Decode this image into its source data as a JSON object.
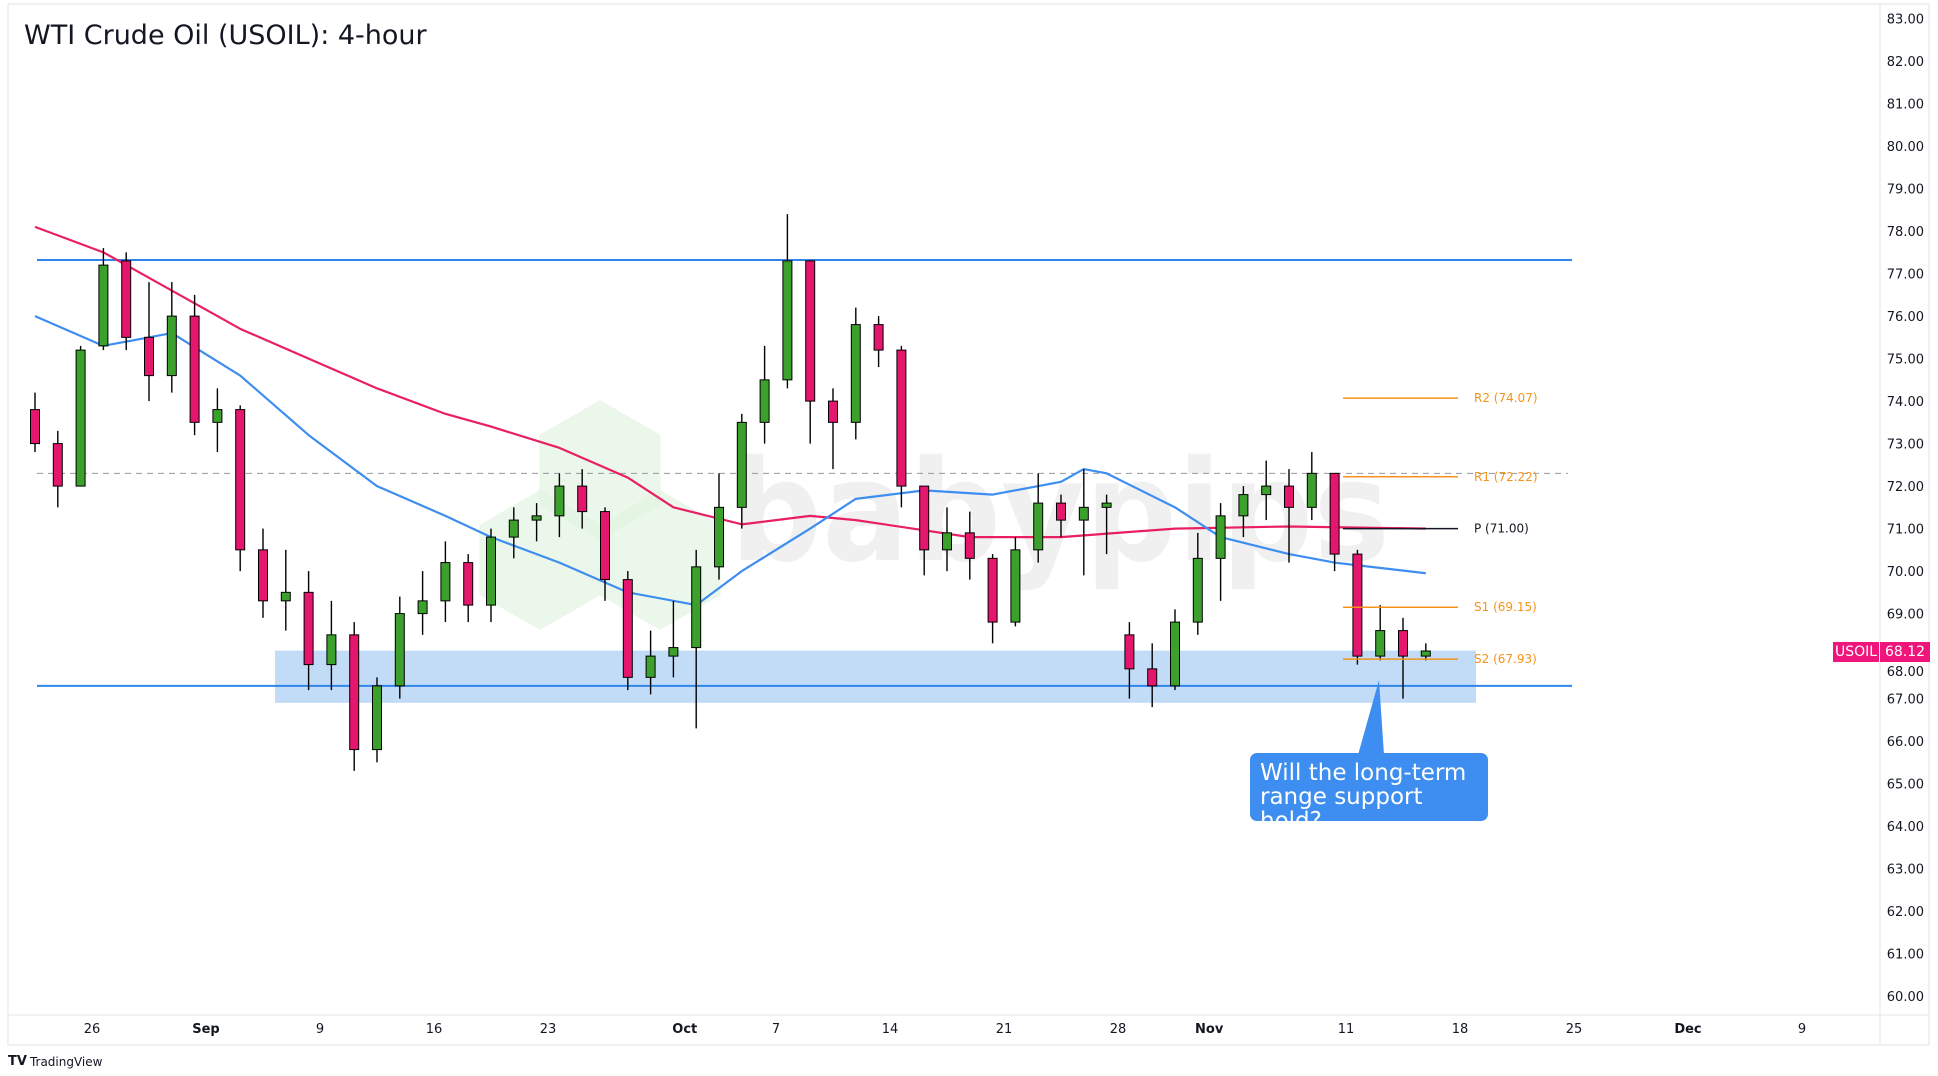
{
  "title": "WTI Crude Oil (USOIL): 4-hour",
  "watermark": "babypips",
  "branding": "TradingView",
  "price_tag": {
    "symbol": "USOIL",
    "value": "68.12",
    "color": "#f0157a"
  },
  "callout": {
    "line1": "Will the long-term",
    "line2": "range support hold?",
    "color": "#3d8ef0"
  },
  "chart_data": {
    "type": "candlestick",
    "ylim": [
      60,
      83
    ],
    "grid": false,
    "y_ticks": [
      "83.00",
      "82.00",
      "81.00",
      "80.00",
      "79.00",
      "78.00",
      "77.00",
      "76.00",
      "75.00",
      "74.00",
      "73.00",
      "72.00",
      "71.00",
      "70.00",
      "69.00",
      "68.00",
      "67.00",
      "66.00",
      "65.00",
      "64.00",
      "63.00",
      "62.00",
      "61.00",
      "60.00"
    ],
    "x_ticks": [
      {
        "label": "26",
        "date": "2024-08-26"
      },
      {
        "label": "Sep",
        "date": "2024-09-02"
      },
      {
        "label": "9",
        "date": "2024-09-09"
      },
      {
        "label": "16",
        "date": "2024-09-16"
      },
      {
        "label": "23",
        "date": "2024-09-23"
      },
      {
        "label": "Oct",
        "date": "2024-10-01"
      },
      {
        "label": "7",
        "date": "2024-10-07"
      },
      {
        "label": "14",
        "date": "2024-10-14"
      },
      {
        "label": "21",
        "date": "2024-10-21"
      },
      {
        "label": "28",
        "date": "2024-10-28"
      },
      {
        "label": "Nov",
        "date": "2024-11-01"
      },
      {
        "label": "11",
        "date": "2024-11-11"
      },
      {
        "label": "18",
        "date": "2024-11-18"
      },
      {
        "label": "25",
        "date": "2024-11-25"
      },
      {
        "label": "Dec",
        "date": "2024-12-02"
      },
      {
        "label": "9",
        "date": "2024-12-09"
      }
    ],
    "up_color": "#3ca02c",
    "down_color": "#e5166d",
    "candles": [
      {
        "d": "2024-08-21",
        "o": 73.8,
        "h": 74.2,
        "l": 72.8,
        "c": 73.0
      },
      {
        "d": "2024-08-22",
        "o": 73.0,
        "h": 73.3,
        "l": 71.5,
        "c": 72.0
      },
      {
        "d": "2024-08-23",
        "o": 72.0,
        "h": 75.3,
        "l": 72.0,
        "c": 75.2
      },
      {
        "d": "2024-08-26",
        "o": 75.3,
        "h": 77.6,
        "l": 75.2,
        "c": 77.2
      },
      {
        "d": "2024-08-27",
        "o": 77.3,
        "h": 77.5,
        "l": 75.2,
        "c": 75.5
      },
      {
        "d": "2024-08-28",
        "o": 75.5,
        "h": 76.8,
        "l": 74.0,
        "c": 74.6
      },
      {
        "d": "2024-08-29",
        "o": 74.6,
        "h": 76.8,
        "l": 74.2,
        "c": 76.0
      },
      {
        "d": "2024-08-30",
        "o": 76.0,
        "h": 76.5,
        "l": 73.2,
        "c": 73.5
      },
      {
        "d": "2024-09-02",
        "o": 73.5,
        "h": 74.3,
        "l": 72.8,
        "c": 73.8
      },
      {
        "d": "2024-09-03",
        "o": 73.8,
        "h": 73.9,
        "l": 70.0,
        "c": 70.5
      },
      {
        "d": "2024-09-04",
        "o": 70.5,
        "h": 71.0,
        "l": 68.9,
        "c": 69.3
      },
      {
        "d": "2024-09-05",
        "o": 69.3,
        "h": 70.5,
        "l": 68.6,
        "c": 69.5
      },
      {
        "d": "2024-09-06",
        "o": 69.5,
        "h": 70.0,
        "l": 67.2,
        "c": 67.8
      },
      {
        "d": "2024-09-09",
        "o": 67.8,
        "h": 69.3,
        "l": 67.2,
        "c": 68.5
      },
      {
        "d": "2024-09-10",
        "o": 68.5,
        "h": 68.8,
        "l": 65.3,
        "c": 65.8
      },
      {
        "d": "2024-09-11",
        "o": 65.8,
        "h": 67.5,
        "l": 65.5,
        "c": 67.3
      },
      {
        "d": "2024-09-12",
        "o": 67.3,
        "h": 69.4,
        "l": 67.0,
        "c": 69.0
      },
      {
        "d": "2024-09-13",
        "o": 69.0,
        "h": 70.0,
        "l": 68.5,
        "c": 69.3
      },
      {
        "d": "2024-09-16",
        "o": 69.3,
        "h": 70.7,
        "l": 68.8,
        "c": 70.2
      },
      {
        "d": "2024-09-17",
        "o": 70.2,
        "h": 70.4,
        "l": 68.8,
        "c": 69.2
      },
      {
        "d": "2024-09-18",
        "o": 69.2,
        "h": 71.0,
        "l": 68.8,
        "c": 70.8
      },
      {
        "d": "2024-09-19",
        "o": 70.8,
        "h": 71.5,
        "l": 70.3,
        "c": 71.2
      },
      {
        "d": "2024-09-20",
        "o": 71.2,
        "h": 71.6,
        "l": 70.7,
        "c": 71.3
      },
      {
        "d": "2024-09-23",
        "o": 71.3,
        "h": 72.3,
        "l": 70.8,
        "c": 72.0
      },
      {
        "d": "2024-09-24",
        "o": 72.0,
        "h": 72.4,
        "l": 71.0,
        "c": 71.4
      },
      {
        "d": "2024-09-25",
        "o": 71.4,
        "h": 71.5,
        "l": 69.3,
        "c": 69.8
      },
      {
        "d": "2024-09-26",
        "o": 69.8,
        "h": 70.0,
        "l": 67.2,
        "c": 67.5
      },
      {
        "d": "2024-09-27",
        "o": 67.5,
        "h": 68.6,
        "l": 67.1,
        "c": 68.0
      },
      {
        "d": "2024-09-30",
        "o": 68.0,
        "h": 69.3,
        "l": 67.5,
        "c": 68.2
      },
      {
        "d": "2024-10-01",
        "o": 68.2,
        "h": 70.5,
        "l": 66.3,
        "c": 70.1
      },
      {
        "d": "2024-10-02",
        "o": 70.1,
        "h": 72.3,
        "l": 69.8,
        "c": 71.5
      },
      {
        "d": "2024-10-03",
        "o": 71.5,
        "h": 73.7,
        "l": 71.0,
        "c": 73.5
      },
      {
        "d": "2024-10-04",
        "o": 73.5,
        "h": 75.3,
        "l": 73.0,
        "c": 74.5
      },
      {
        "d": "2024-10-07",
        "o": 74.5,
        "h": 78.4,
        "l": 74.3,
        "c": 77.3
      },
      {
        "d": "2024-10-08",
        "o": 77.3,
        "h": 77.3,
        "l": 73.0,
        "c": 74.0
      },
      {
        "d": "2024-10-09",
        "o": 74.0,
        "h": 74.3,
        "l": 72.4,
        "c": 73.5
      },
      {
        "d": "2024-10-10",
        "o": 73.5,
        "h": 76.2,
        "l": 73.1,
        "c": 75.8
      },
      {
        "d": "2024-10-11",
        "o": 75.8,
        "h": 76.0,
        "l": 74.8,
        "c": 75.2
      },
      {
        "d": "2024-10-14",
        "o": 75.2,
        "h": 75.3,
        "l": 71.5,
        "c": 72.0
      },
      {
        "d": "2024-10-15",
        "o": 72.0,
        "h": 72.0,
        "l": 69.9,
        "c": 70.5
      },
      {
        "d": "2024-10-16",
        "o": 70.5,
        "h": 71.5,
        "l": 70.0,
        "c": 70.9
      },
      {
        "d": "2024-10-17",
        "o": 70.9,
        "h": 71.4,
        "l": 69.8,
        "c": 70.3
      },
      {
        "d": "2024-10-18",
        "o": 70.3,
        "h": 70.4,
        "l": 68.3,
        "c": 68.8
      },
      {
        "d": "2024-10-21",
        "o": 68.8,
        "h": 70.8,
        "l": 68.7,
        "c": 70.5
      },
      {
        "d": "2024-10-22",
        "o": 70.5,
        "h": 72.3,
        "l": 70.2,
        "c": 71.6
      },
      {
        "d": "2024-10-23",
        "o": 71.6,
        "h": 71.8,
        "l": 70.8,
        "c": 71.2
      },
      {
        "d": "2024-10-24",
        "o": 71.2,
        "h": 72.4,
        "l": 69.9,
        "c": 71.5
      },
      {
        "d": "2024-10-25",
        "o": 71.5,
        "h": 71.8,
        "l": 70.4,
        "c": 71.6
      },
      {
        "d": "2024-10-28",
        "o": 68.5,
        "h": 68.8,
        "l": 67.0,
        "c": 67.7
      },
      {
        "d": "2024-10-29",
        "o": 67.7,
        "h": 68.3,
        "l": 66.8,
        "c": 67.3
      },
      {
        "d": "2024-10-30",
        "o": 67.3,
        "h": 69.1,
        "l": 67.2,
        "c": 68.8
      },
      {
        "d": "2024-10-31",
        "o": 68.8,
        "h": 70.9,
        "l": 68.5,
        "c": 70.3
      },
      {
        "d": "2024-11-01",
        "o": 70.3,
        "h": 71.6,
        "l": 69.3,
        "c": 71.3
      },
      {
        "d": "2024-11-04",
        "o": 71.3,
        "h": 72.0,
        "l": 70.8,
        "c": 71.8
      },
      {
        "d": "2024-11-05",
        "o": 71.8,
        "h": 72.6,
        "l": 71.2,
        "c": 72.0
      },
      {
        "d": "2024-11-06",
        "o": 72.0,
        "h": 72.4,
        "l": 70.2,
        "c": 71.5
      },
      {
        "d": "2024-11-07",
        "o": 71.5,
        "h": 72.8,
        "l": 71.2,
        "c": 72.3
      },
      {
        "d": "2024-11-08",
        "o": 72.3,
        "h": 72.3,
        "l": 70.0,
        "c": 70.4
      },
      {
        "d": "2024-11-11",
        "o": 70.4,
        "h": 70.5,
        "l": 67.8,
        "c": 68.0
      },
      {
        "d": "2024-11-12",
        "o": 68.0,
        "h": 69.2,
        "l": 67.9,
        "c": 68.6
      },
      {
        "d": "2024-11-13",
        "o": 68.6,
        "h": 68.9,
        "l": 67.0,
        "c": 68.0
      },
      {
        "d": "2024-11-14",
        "o": 68.0,
        "h": 68.3,
        "l": 67.9,
        "c": 68.12
      }
    ],
    "moving_averages": [
      {
        "color": "#e91e63",
        "points": [
          {
            "d": "2024-08-21",
            "v": 78.1
          },
          {
            "d": "2024-08-26",
            "v": 77.5
          },
          {
            "d": "2024-08-29",
            "v": 76.6
          },
          {
            "d": "2024-09-03",
            "v": 75.7
          },
          {
            "d": "2024-09-06",
            "v": 75.0
          },
          {
            "d": "2024-09-11",
            "v": 74.3
          },
          {
            "d": "2024-09-16",
            "v": 73.7
          },
          {
            "d": "2024-09-18",
            "v": 73.4
          },
          {
            "d": "2024-09-23",
            "v": 72.9
          },
          {
            "d": "2024-09-26",
            "v": 72.2
          },
          {
            "d": "2024-09-30",
            "v": 71.5
          },
          {
            "d": "2024-10-03",
            "v": 71.1
          },
          {
            "d": "2024-10-08",
            "v": 71.3
          },
          {
            "d": "2024-10-10",
            "v": 71.2
          },
          {
            "d": "2024-10-17",
            "v": 70.8
          },
          {
            "d": "2024-10-23",
            "v": 70.8
          },
          {
            "d": "2024-10-30",
            "v": 71.0
          },
          {
            "d": "2024-11-06",
            "v": 71.05
          },
          {
            "d": "2024-11-14",
            "v": 71.0
          }
        ]
      },
      {
        "color": "#3d8ef0",
        "points": [
          {
            "d": "2024-08-21",
            "v": 76.0
          },
          {
            "d": "2024-08-26",
            "v": 75.3
          },
          {
            "d": "2024-08-29",
            "v": 75.6
          },
          {
            "d": "2024-09-03",
            "v": 74.6
          },
          {
            "d": "2024-09-06",
            "v": 73.2
          },
          {
            "d": "2024-09-11",
            "v": 72.0
          },
          {
            "d": "2024-09-16",
            "v": 71.3
          },
          {
            "d": "2024-09-18",
            "v": 70.8
          },
          {
            "d": "2024-09-23",
            "v": 70.2
          },
          {
            "d": "2024-09-26",
            "v": 69.5
          },
          {
            "d": "2024-10-01",
            "v": 69.2
          },
          {
            "d": "2024-10-03",
            "v": 70.0
          },
          {
            "d": "2024-10-08",
            "v": 71.0
          },
          {
            "d": "2024-10-10",
            "v": 71.7
          },
          {
            "d": "2024-10-15",
            "v": 71.9
          },
          {
            "d": "2024-10-18",
            "v": 71.8
          },
          {
            "d": "2024-10-23",
            "v": 72.1
          },
          {
            "d": "2024-10-24",
            "v": 72.4
          },
          {
            "d": "2024-10-25",
            "v": 72.3
          },
          {
            "d": "2024-10-30",
            "v": 71.5
          },
          {
            "d": "2024-11-01",
            "v": 70.8
          },
          {
            "d": "2024-11-06",
            "v": 70.4
          },
          {
            "d": "2024-11-08",
            "v": 70.2
          },
          {
            "d": "2024-11-14",
            "v": 69.95
          }
        ]
      }
    ],
    "range_lines": [
      77.32,
      67.3
    ],
    "range_color": "#2f86e8",
    "support_zone": {
      "top": 68.13,
      "bottom": 66.9,
      "color": "#c2dcf7"
    },
    "dashed_level": 72.3,
    "pivots": [
      {
        "label": "R2 (74.07)",
        "value": 74.07,
        "color": "#f7931a"
      },
      {
        "label": "R1 (72.22)",
        "value": 72.22,
        "color": "#f7931a"
      },
      {
        "label": "P (71.00)",
        "value": 71.0,
        "color": "#131722"
      },
      {
        "label": "S1 (69.15)",
        "value": 69.15,
        "color": "#f7931a"
      },
      {
        "label": "S2 (67.93)",
        "value": 67.93,
        "color": "#f7931a"
      }
    ]
  }
}
